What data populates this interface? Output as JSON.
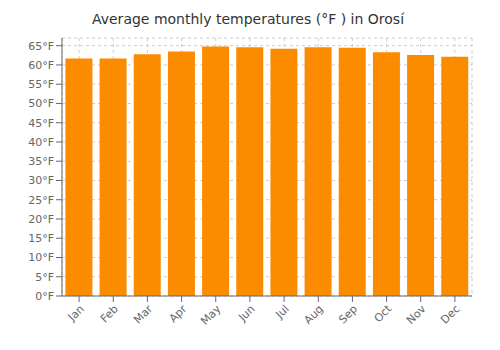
{
  "chart_data": {
    "type": "bar",
    "title": "Average monthly temperatures (°F ) in Orosí",
    "categories": [
      "Jan",
      "Feb",
      "Mar",
      "Apr",
      "May",
      "Jun",
      "Jul",
      "Aug",
      "Sep",
      "Oct",
      "Nov",
      "Dec"
    ],
    "values": [
      61.7,
      61.7,
      62.8,
      63.5,
      64.8,
      64.6,
      64.2,
      64.6,
      64.5,
      63.3,
      62.6,
      62.1
    ],
    "color": "#FB8C00",
    "ylim": [
      0,
      67
    ],
    "yticks": [
      {
        "value": 0,
        "label": "0°F"
      },
      {
        "value": 5,
        "label": "5°F"
      },
      {
        "value": 10,
        "label": "10°F"
      },
      {
        "value": 15,
        "label": "15°F"
      },
      {
        "value": 20,
        "label": "20°F"
      },
      {
        "value": 25,
        "label": "25°F"
      },
      {
        "value": 30,
        "label": "30°F"
      },
      {
        "value": 35,
        "label": "35°F"
      },
      {
        "value": 40,
        "label": "40°F"
      },
      {
        "value": 45,
        "label": "45°F"
      },
      {
        "value": 50,
        "label": "50°F"
      },
      {
        "value": 55,
        "label": "55°F"
      },
      {
        "value": 60,
        "label": "60°F"
      },
      {
        "value": 65,
        "label": "65°F"
      }
    ],
    "grid": true
  }
}
